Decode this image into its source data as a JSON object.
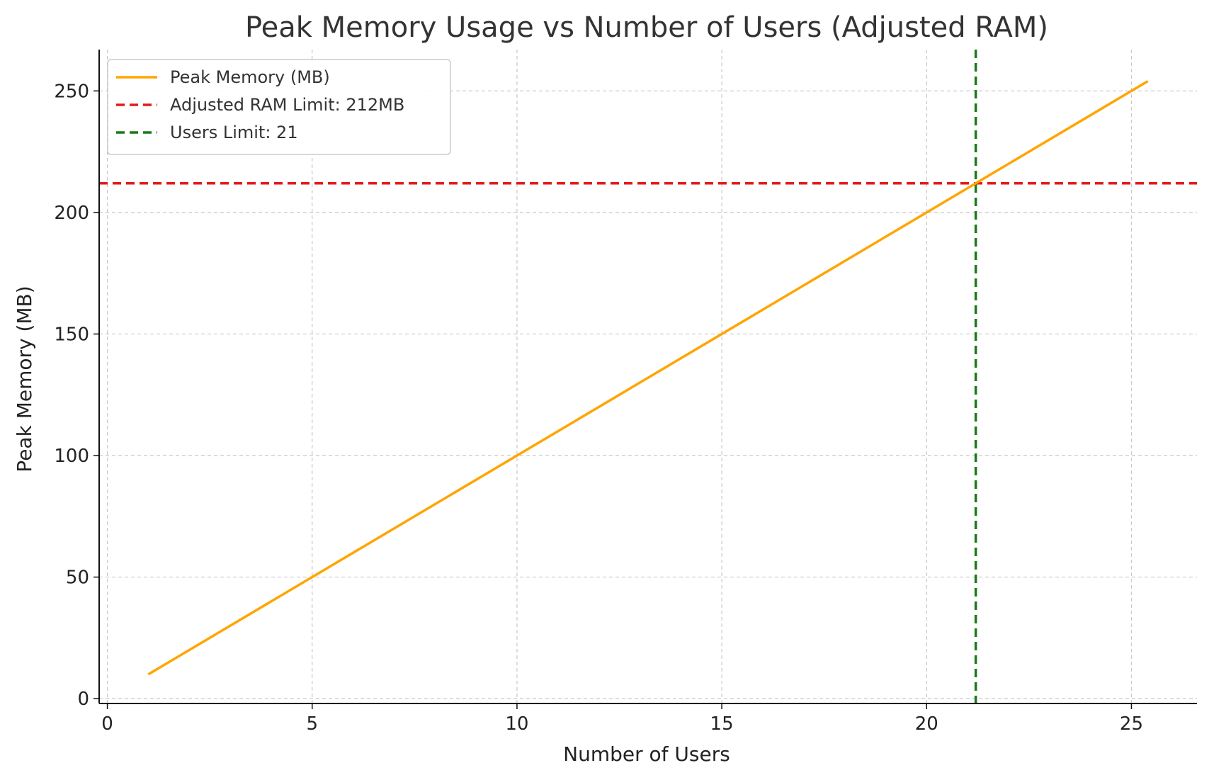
{
  "chart_data": {
    "type": "line",
    "title": "Peak Memory Usage vs Number of Users (Adjusted RAM)",
    "xlabel": "Number of Users",
    "ylabel": "Peak Memory (MB)",
    "xlim": [
      -0.2,
      26.6
    ],
    "ylim": [
      -2,
      267
    ],
    "xticks": [
      0,
      5,
      10,
      15,
      20,
      25
    ],
    "yticks": [
      0,
      50,
      100,
      150,
      200,
      250
    ],
    "grid": true,
    "legend_position": "upper-left",
    "series": [
      {
        "name": "Peak Memory (MB)",
        "color": "#FFA500",
        "style": "solid",
        "x": [
          1,
          25.4
        ],
        "y": [
          10,
          254
        ]
      }
    ],
    "reference_lines": [
      {
        "name": "Adjusted RAM Limit: 212MB",
        "orientation": "horizontal",
        "value": 212,
        "color": "#E31A1C",
        "style": "dashed"
      },
      {
        "name": "Users Limit: 21",
        "orientation": "vertical",
        "value": 21.2,
        "color": "#1A7A1A",
        "style": "dashed"
      }
    ]
  }
}
